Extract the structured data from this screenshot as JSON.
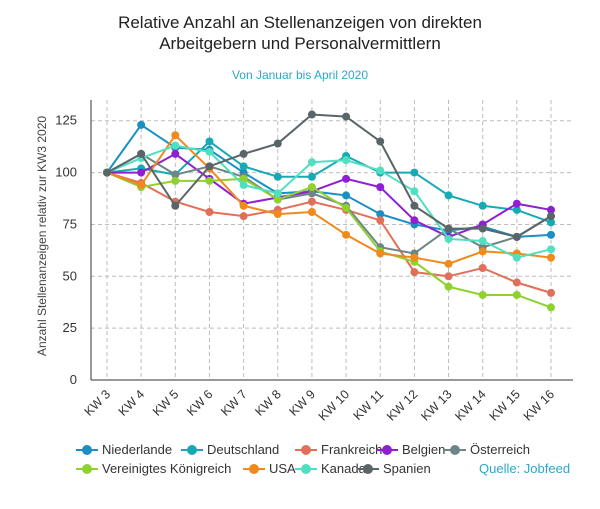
{
  "title_line1": "Relative Anzahl an Stellenanzeigen von direkten",
  "title_line2": "Arbeitgebern und Personalvermittlern",
  "subtitle": "Von Januar bis April 2020",
  "source": "Quelle: Jobfeed",
  "chart_data": {
    "type": "line",
    "title": "Relative Anzahl an Stellenanzeigen von direkten Arbeitgebern und Personalvermittlern",
    "subtitle": "Von Januar bis April 2020",
    "xlabel": "",
    "ylabel": "Anzahl Stellenanzeigen relativ zur KW3 2020",
    "ylim": [
      0,
      135
    ],
    "yticks": [
      0,
      25,
      50,
      75,
      100,
      125
    ],
    "grid": true,
    "legend_position": "bottom",
    "categories": [
      "KW 3",
      "KW 4",
      "KW 5",
      "KW 6",
      "KW 7",
      "KW 8",
      "KW 9",
      "KW 10",
      "KW 11",
      "KW 12",
      "KW 13",
      "KW 14",
      "KW 15",
      "KW 16"
    ],
    "series": [
      {
        "name": "Niederlande",
        "color": "#1a8fc2",
        "values": [
          100,
          123,
          112,
          111,
          100,
          90,
          91,
          89,
          80,
          75,
          72,
          74,
          69,
          70
        ]
      },
      {
        "name": "Deutschland",
        "color": "#17aab5",
        "values": [
          100,
          102,
          99,
          115,
          103,
          98,
          98,
          108,
          100,
          100,
          89,
          84,
          82,
          76
        ]
      },
      {
        "name": "Frankreich",
        "color": "#e0705a",
        "values": [
          100,
          95,
          86,
          81,
          79,
          82,
          86,
          82,
          77,
          52,
          50,
          54,
          47,
          42
        ]
      },
      {
        "name": "Belgien",
        "color": "#8f1fd1",
        "values": [
          100,
          100,
          109,
          97,
          85,
          88,
          91,
          97,
          93,
          77,
          69,
          75,
          85,
          82
        ]
      },
      {
        "name": "Österreich",
        "color": "#6e8585",
        "values": [
          100,
          109,
          99,
          103,
          98,
          87,
          90,
          84,
          64,
          61,
          73,
          64,
          69,
          79
        ]
      },
      {
        "name": "Vereinigtes Königreich",
        "color": "#8fd12e",
        "values": [
          100,
          93,
          96,
          96,
          97,
          87,
          93,
          83,
          62,
          57,
          45,
          41,
          41,
          35
        ]
      },
      {
        "name": "USA",
        "color": "#f08a1c",
        "values": [
          100,
          94,
          118,
          102,
          84,
          80,
          81,
          70,
          61,
          59,
          56,
          62,
          61,
          59
        ]
      },
      {
        "name": "Kanada",
        "color": "#4ee0c0",
        "values": [
          100,
          107,
          113,
          110,
          94,
          90,
          105,
          106,
          101,
          91,
          68,
          67,
          59,
          63
        ]
      },
      {
        "name": "Spanien",
        "color": "#5a6569",
        "values": [
          100,
          109,
          84,
          103,
          109,
          114,
          128,
          127,
          115,
          84,
          73,
          73,
          69,
          79
        ]
      }
    ]
  }
}
